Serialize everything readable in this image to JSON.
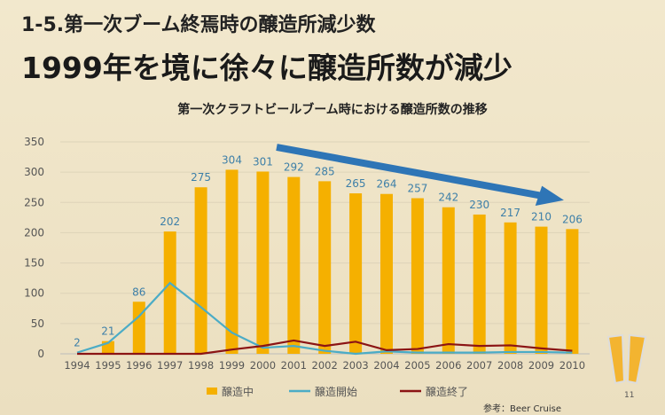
{
  "slide": {
    "section_title": "1-5.第一次ブーム終焉時の醸造所減少数",
    "headline": "1999年を境に徐々に醸造所数が減少",
    "source": "参考：Beer Cruise",
    "page_number": "11"
  },
  "chart_data": {
    "type": "bar",
    "title": "第一次クラフトビールブーム時における醸造所数の推移",
    "categories": [
      "1994",
      "1995",
      "1996",
      "1997",
      "1998",
      "1999",
      "2000",
      "2001",
      "2002",
      "2003",
      "2004",
      "2005",
      "2006",
      "2007",
      "2008",
      "2009",
      "2010"
    ],
    "series": [
      {
        "name": "醸造中",
        "type": "bar",
        "color": "#f5b000",
        "values": [
          2,
          21,
          86,
          202,
          275,
          304,
          301,
          292,
          285,
          265,
          264,
          257,
          242,
          230,
          217,
          210,
          206
        ]
      },
      {
        "name": "醸造開始",
        "type": "line",
        "color": "#4bacc6",
        "values": [
          2,
          18,
          62,
          117,
          77,
          35,
          10,
          13,
          5,
          0,
          4,
          2,
          2,
          2,
          3,
          3,
          2
        ]
      },
      {
        "name": "醸造終了",
        "type": "line",
        "color": "#8b1414",
        "values": [
          0,
          0,
          0,
          0,
          0,
          7,
          13,
          22,
          13,
          20,
          6,
          8,
          16,
          13,
          14,
          9,
          5
        ]
      }
    ],
    "ylim": [
      0,
      350
    ],
    "yticks": [
      0,
      50,
      100,
      150,
      200,
      250,
      300,
      350
    ],
    "grid": true,
    "legend": "bottom",
    "annotation": "downward trend arrow from 2000 to 2009"
  }
}
